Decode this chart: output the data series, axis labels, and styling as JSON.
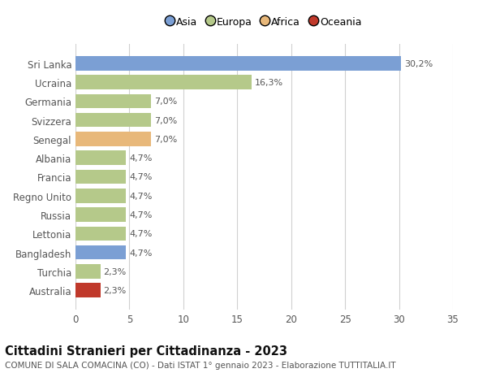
{
  "countries": [
    "Sri Lanka",
    "Ucraina",
    "Germania",
    "Svizzera",
    "Senegal",
    "Albania",
    "Francia",
    "Regno Unito",
    "Russia",
    "Lettonia",
    "Bangladesh",
    "Turchia",
    "Australia"
  ],
  "values": [
    30.2,
    16.3,
    7.0,
    7.0,
    7.0,
    4.7,
    4.7,
    4.7,
    4.7,
    4.7,
    4.7,
    2.3,
    2.3
  ],
  "labels": [
    "30,2%",
    "16,3%",
    "7,0%",
    "7,0%",
    "7,0%",
    "4,7%",
    "4,7%",
    "4,7%",
    "4,7%",
    "4,7%",
    "4,7%",
    "2,3%",
    "2,3%"
  ],
  "colors": [
    "#7b9fd4",
    "#b5c98a",
    "#b5c98a",
    "#b5c98a",
    "#e8b87a",
    "#b5c98a",
    "#b5c98a",
    "#b5c98a",
    "#b5c98a",
    "#b5c98a",
    "#7b9fd4",
    "#b5c98a",
    "#c0392b"
  ],
  "legend_labels": [
    "Asia",
    "Europa",
    "Africa",
    "Oceania"
  ],
  "legend_colors": [
    "#7b9fd4",
    "#b5c98a",
    "#e8b87a",
    "#c0392b"
  ],
  "title": "Cittadini Stranieri per Cittadinanza - 2023",
  "subtitle": "COMUNE DI SALA COMACINA (CO) - Dati ISTAT 1° gennaio 2023 - Elaborazione TUTTITALIA.IT",
  "xlim": [
    0,
    35
  ],
  "xticks": [
    0,
    5,
    10,
    15,
    20,
    25,
    30,
    35
  ],
  "background_color": "#ffffff",
  "grid_color": "#d0d0d0",
  "bar_height": 0.75,
  "label_fontsize": 8,
  "tick_fontsize": 8.5,
  "ytick_fontsize": 8.5,
  "title_fontsize": 10.5,
  "subtitle_fontsize": 7.5
}
